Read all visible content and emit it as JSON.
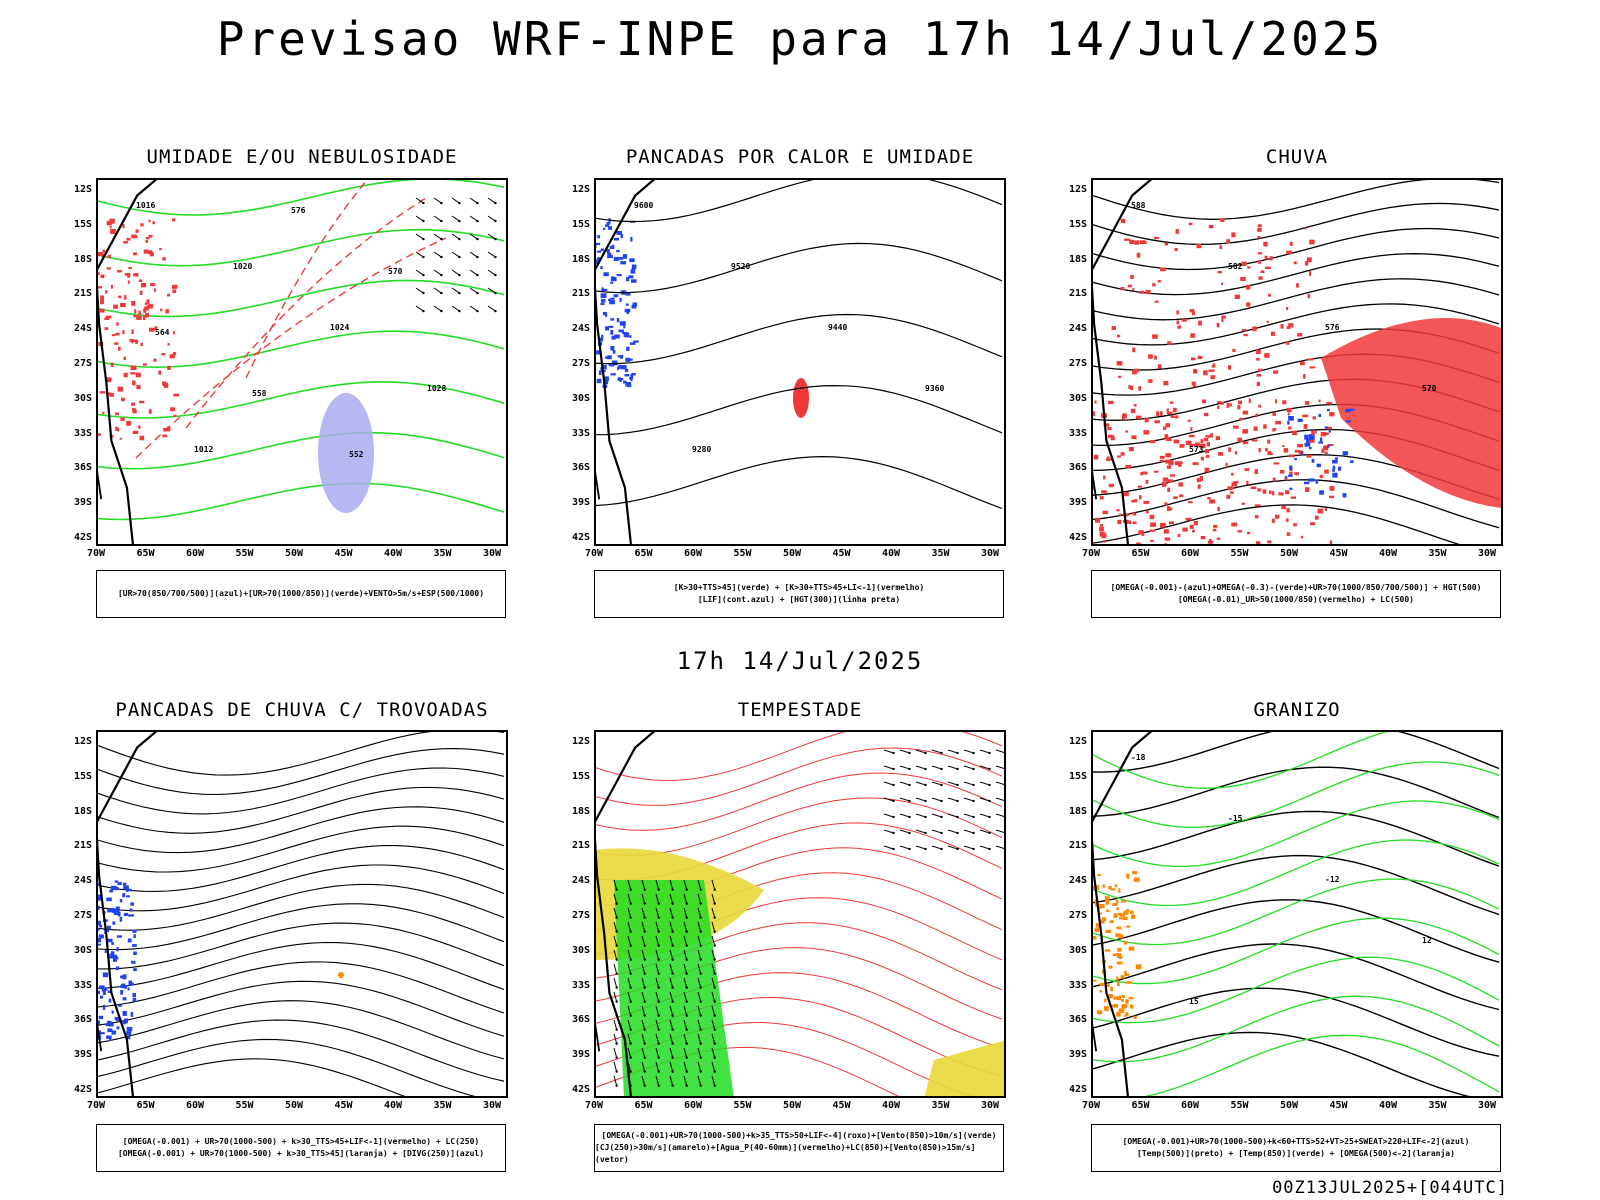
{
  "main_title": "Previsao WRF-INPE  para 17h 14/Jul/2025",
  "mid_title": "17h 14/Jul/2025",
  "run_info": "00Z13JUL2025+[044UTC]",
  "axes": {
    "lat_labels": [
      "12S",
      "15S",
      "18S",
      "21S",
      "24S",
      "27S",
      "30S",
      "33S",
      "36S",
      "39S",
      "42S"
    ],
    "lon_labels": [
      "70W",
      "65W",
      "60W",
      "55W",
      "50W",
      "45W",
      "40W",
      "35W",
      "30W"
    ]
  },
  "colors": {
    "green": "#22dd22",
    "red": "#f03838",
    "blue": "#2244ee",
    "purple": "#aaaaee",
    "yellow": "#e8d838",
    "orange": "#ff8800",
    "black": "#000000"
  },
  "panels": [
    {
      "title": "UMIDADE E/OU NEBULOSIDADE",
      "legend": [
        "[UR>70(850/700/500)](azul)+[UR>70(1000/850)](verde)+VENTO>5m/s+ESP(500/1000)"
      ],
      "contour_labels": [
        "1016",
        "1020",
        "1024",
        "1028",
        "1012",
        "576",
        "570",
        "564",
        "558",
        "552"
      ]
    },
    {
      "title": "PANCADAS POR CALOR E UMIDADE",
      "legend": [
        "[K>30+TTS>45](verde) + [K>30+TTS>45+LI<-1](vermelho)",
        "[LIF](cont.azul) + [HGT(300)](linha preta)"
      ],
      "contour_labels": [
        "9600",
        "9520",
        "9440",
        "9360",
        "9280"
      ]
    },
    {
      "title": "CHUVA",
      "legend": [
        "[OMEGA(-0.001)-(azul)+OMEGA(-0.3)-(verde)+UR>70(1000/850/700/500)] + HGT(500)",
        "[OMEGA(-0.01)_UR>50(1000/850)(vermelho) + LC(500)"
      ],
      "contour_labels": [
        "588",
        "582",
        "576",
        "570",
        "573"
      ]
    },
    {
      "title": "PANCADAS DE CHUVA C/ TROVOADAS",
      "legend": [
        "[OMEGA(-0.001) + UR>70(1000-500) + k>30_TTS>45+LIF<-1](vermelho) + LC(250)",
        "[OMEGA(-0.001) + UR>70(1000-500) + k>30_TTS>45](laranja) + [DIVG(250)](azul)"
      ],
      "contour_labels": []
    },
    {
      "title": "TEMPESTADE",
      "legend": [
        "[OMEGA(-0.001)+UR>70(1000-500)+k>35_TTS>50+LIF<-4](roxo)+[Vento(850)>10m/s](verde)",
        "[CJ(250)>30m/s](amarelo)+[Agua_P(40-60mm)](vermelho)+LC(850)+[Vento(850)>15m/s](vetor)"
      ],
      "contour_labels": []
    },
    {
      "title": "GRANIZO",
      "legend": [
        "[OMEGA(-0.001)+UR>70(1000-500)+k<60+TTS>52+VT>25+SWEAT>220+LIF<-2](azul)",
        "[Temp(500)](preto) + [Temp(850)](verde) + [OMEGA(500)<-2](laranja)"
      ],
      "contour_labels": [
        "-18",
        "-15",
        "-12",
        "12",
        "15"
      ]
    }
  ]
}
